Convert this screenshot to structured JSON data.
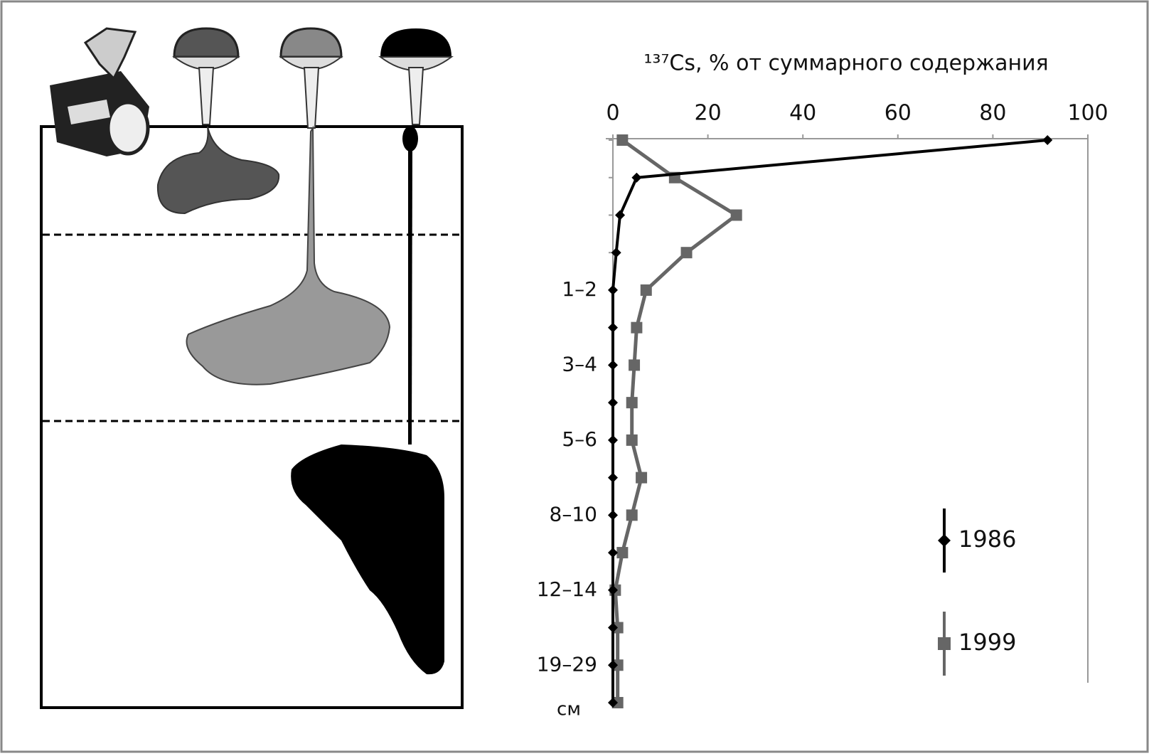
{
  "chart_data": {
    "type": "line",
    "title": "¹³⁷Cs, % от суммарного содержания",
    "y_label": "см",
    "categories": [
      null,
      null,
      null,
      null,
      "1–2",
      null,
      "3–4",
      null,
      "5–6",
      null,
      "8–10",
      null,
      "12–14",
      null,
      "19–29",
      null
    ],
    "series": [
      {
        "name": "1986",
        "color": "#000000",
        "marker": "diamond",
        "values": [
          91.5,
          5,
          1.5,
          0.7,
          0,
          0,
          0,
          0,
          0,
          0,
          0,
          0,
          0,
          0,
          0,
          0
        ]
      },
      {
        "name": "1999",
        "color": "#666666",
        "marker": "square",
        "values": [
          2,
          13,
          26,
          15.5,
          7,
          5,
          4.5,
          4,
          4,
          6,
          4,
          2,
          0.5,
          1,
          1,
          1
        ]
      }
    ],
    "xlim": [
      0,
      100
    ],
    "xticks": [
      0,
      20,
      40,
      60,
      80,
      100
    ]
  }
}
